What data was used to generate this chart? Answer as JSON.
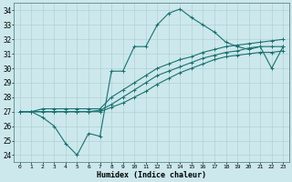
{
  "xlabel": "Humidex (Indice chaleur)",
  "background_color": "#cce8ec",
  "grid_color": "#aacccc",
  "line_color": "#1a7070",
  "xlim": [
    -0.5,
    23.5
  ],
  "ylim": [
    23.5,
    34.5
  ],
  "xticks": [
    0,
    1,
    2,
    3,
    4,
    5,
    6,
    7,
    8,
    9,
    10,
    11,
    12,
    13,
    14,
    15,
    16,
    17,
    18,
    19,
    20,
    21,
    22,
    23
  ],
  "yticks": [
    24,
    25,
    26,
    27,
    28,
    29,
    30,
    31,
    32,
    33,
    34
  ],
  "series_zigzag": [
    27.0,
    27.0,
    26.6,
    26.0,
    24.8,
    24.0,
    25.5,
    25.3,
    29.8,
    29.8,
    31.5,
    31.5,
    33.0,
    33.8,
    34.1,
    33.5,
    33.0,
    32.5,
    31.8,
    31.5,
    31.3,
    31.5,
    30.0,
    31.5
  ],
  "series_high": [
    27.0,
    27.0,
    27.2,
    27.2,
    27.2,
    27.2,
    27.2,
    27.2,
    28.0,
    28.5,
    29.0,
    29.5,
    30.0,
    30.3,
    30.6,
    30.8,
    31.1,
    31.3,
    31.5,
    31.6,
    31.7,
    31.8,
    31.9,
    32.0
  ],
  "series_mid": [
    27.0,
    27.0,
    27.0,
    27.0,
    27.0,
    27.0,
    27.0,
    27.1,
    27.5,
    28.0,
    28.5,
    29.0,
    29.5,
    29.8,
    30.1,
    30.4,
    30.7,
    30.9,
    31.1,
    31.2,
    31.4,
    31.5,
    31.5,
    31.5
  ],
  "series_low": [
    27.0,
    27.0,
    27.0,
    27.0,
    27.0,
    27.0,
    27.0,
    27.0,
    27.3,
    27.6,
    28.0,
    28.4,
    28.9,
    29.3,
    29.7,
    30.0,
    30.3,
    30.6,
    30.8,
    30.9,
    31.0,
    31.1,
    31.1,
    31.2
  ]
}
